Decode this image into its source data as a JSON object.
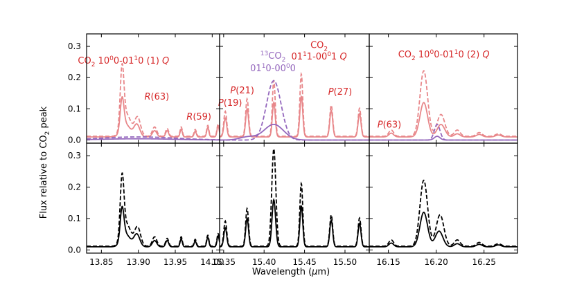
{
  "colors": {
    "co2": "#e8878a",
    "co2_text": "#d62728",
    "c13": "#9467bd",
    "total": "#000000"
  },
  "chart_data": {
    "type": "line",
    "ylabel": "Flux relative to CO₂ peak",
    "ylabel_parts": {
      "pre": "Flux relative to CO",
      "sub": "2",
      "post": " peak"
    },
    "xlabel": "Wavelength (μm)",
    "xlabel_parts": {
      "pre": "Wavelength (",
      "mu": "μ",
      "post": "m)"
    },
    "ylim": [
      -0.01,
      0.34
    ],
    "yticks": [
      0.0,
      0.1,
      0.2,
      0.3
    ],
    "ytick_labels": [
      "0.0",
      "0.1",
      "0.2",
      "0.3"
    ],
    "grid": false,
    "x_ranges": [
      {
        "xlim": [
          13.83,
          14.01
        ],
        "xticks": [
          13.85,
          13.9,
          13.95,
          14.0
        ],
        "xtick_labels": [
          "13.85",
          "13.90",
          "13.95",
          "14.00"
        ]
      },
      {
        "xlim": [
          15.345,
          15.53
        ],
        "xticks": [
          15.35,
          15.4,
          15.45,
          15.5
        ],
        "xtick_labels": [
          "15.35",
          "15.40",
          "15.45",
          "15.50"
        ]
      },
      {
        "xlim": [
          16.13,
          16.285
        ],
        "xticks": [
          16.15,
          16.2,
          16.25
        ],
        "xtick_labels": [
          "16.15",
          "16.20",
          "16.25"
        ]
      }
    ],
    "series": [
      {
        "row": "top",
        "color_key": "co2",
        "style": "solid",
        "baseline": 0.01,
        "peaks": [
          [
            [
              13.878,
              0.1,
              0.0025
            ],
            [
              13.883,
              0.04,
              0.006
            ],
            [
              13.898,
              0.04,
              0.004
            ],
            [
              13.922,
              0.02,
              0.003
            ],
            [
              13.939,
              0.02,
              0.002
            ],
            [
              13.958,
              0.025,
              0.0015
            ],
            [
              13.977,
              0.018,
              0.0015
            ],
            [
              13.994,
              0.03,
              0.0015
            ],
            [
              14.008,
              0.035,
              0.0015
            ]
          ],
          [
            [
              15.352,
              0.06,
              0.0018
            ],
            [
              15.379,
              0.09,
              0.0018
            ],
            [
              15.412,
              0.11,
              0.0018
            ],
            [
              15.446,
              0.13,
              0.0018
            ],
            [
              15.483,
              0.085,
              0.0018
            ],
            [
              15.518,
              0.075,
              0.0018
            ]
          ],
          [
            [
              16.153,
              0.012,
              0.0025
            ],
            [
              16.187,
              0.11,
              0.004
            ],
            [
              16.205,
              0.04,
              0.004
            ],
            [
              16.222,
              0.01,
              0.003
            ],
            [
              16.245,
              0.008,
              0.003
            ],
            [
              16.265,
              0.006,
              0.003
            ]
          ]
        ]
      },
      {
        "row": "top",
        "color_key": "co2",
        "style": "dashed",
        "baseline": 0.012,
        "peaks": [
          [
            [
              13.878,
              0.19,
              0.0025
            ],
            [
              13.884,
              0.07,
              0.006
            ],
            [
              13.899,
              0.06,
              0.004
            ],
            [
              13.922,
              0.03,
              0.003
            ],
            [
              13.939,
              0.025,
              0.002
            ],
            [
              13.958,
              0.03,
              0.0015
            ],
            [
              13.977,
              0.022,
              0.0015
            ],
            [
              13.994,
              0.035,
              0.0015
            ],
            [
              14.008,
              0.04,
              0.0015
            ]
          ],
          [
            [
              15.352,
              0.08,
              0.0018
            ],
            [
              15.379,
              0.12,
              0.0018
            ],
            [
              15.412,
              0.18,
              0.0018
            ],
            [
              15.446,
              0.2,
              0.0018
            ],
            [
              15.483,
              0.1,
              0.0018
            ],
            [
              15.518,
              0.09,
              0.0018
            ]
          ],
          [
            [
              16.153,
              0.02,
              0.0025
            ],
            [
              16.187,
              0.21,
              0.004
            ],
            [
              16.205,
              0.07,
              0.004
            ],
            [
              16.222,
              0.02,
              0.003
            ],
            [
              16.245,
              0.012,
              0.003
            ],
            [
              16.265,
              0.008,
              0.003
            ]
          ]
        ]
      },
      {
        "row": "top",
        "color_key": "c13",
        "style": "solid",
        "baseline": 0.0,
        "peaks": [
          [
            [
              13.9,
              0.004,
              0.05
            ]
          ],
          [
            [
              15.412,
              0.05,
              0.012
            ],
            [
              15.38,
              0.01,
              0.01
            ]
          ],
          [
            [
              16.201,
              0.012,
              0.003
            ]
          ]
        ]
      },
      {
        "row": "top",
        "color_key": "c13",
        "style": "dashed",
        "baseline": 0.0,
        "peaks": [
          [
            [
              13.9,
              0.01,
              0.05
            ]
          ],
          [
            [
              15.412,
              0.19,
              0.009
            ]
          ],
          [
            [
              16.201,
              0.05,
              0.003
            ]
          ]
        ]
      },
      {
        "row": "bottom",
        "color_key": "total",
        "style": "solid",
        "baseline": 0.01,
        "peaks": [
          [
            [
              13.878,
              0.1,
              0.0025
            ],
            [
              13.883,
              0.04,
              0.006
            ],
            [
              13.898,
              0.04,
              0.004
            ],
            [
              13.922,
              0.02,
              0.003
            ],
            [
              13.939,
              0.02,
              0.002
            ],
            [
              13.958,
              0.025,
              0.0015
            ],
            [
              13.977,
              0.018,
              0.0015
            ],
            [
              13.994,
              0.03,
              0.0015
            ],
            [
              14.008,
              0.035,
              0.0015
            ]
          ],
          [
            [
              15.352,
              0.06,
              0.0018
            ],
            [
              15.379,
              0.09,
              0.0018
            ],
            [
              15.412,
              0.15,
              0.0022
            ],
            [
              15.446,
              0.13,
              0.0018
            ],
            [
              15.483,
              0.085,
              0.0018
            ],
            [
              15.518,
              0.075,
              0.0018
            ]
          ],
          [
            [
              16.153,
              0.012,
              0.0025
            ],
            [
              16.187,
              0.11,
              0.004
            ],
            [
              16.203,
              0.05,
              0.004
            ],
            [
              16.222,
              0.01,
              0.003
            ],
            [
              16.245,
              0.008,
              0.003
            ],
            [
              16.265,
              0.006,
              0.003
            ]
          ]
        ]
      },
      {
        "row": "bottom",
        "color_key": "total",
        "style": "dashed",
        "baseline": 0.012,
        "peaks": [
          [
            [
              13.878,
              0.19,
              0.0025
            ],
            [
              13.884,
              0.07,
              0.006
            ],
            [
              13.899,
              0.06,
              0.004
            ],
            [
              13.922,
              0.03,
              0.003
            ],
            [
              13.939,
              0.025,
              0.002
            ],
            [
              13.958,
              0.03,
              0.0015
            ],
            [
              13.977,
              0.022,
              0.0015
            ],
            [
              13.994,
              0.035,
              0.0015
            ],
            [
              14.008,
              0.04,
              0.0015
            ]
          ],
          [
            [
              15.352,
              0.08,
              0.0018
            ],
            [
              15.379,
              0.12,
              0.0018
            ],
            [
              15.412,
              0.31,
              0.0025
            ],
            [
              15.446,
              0.2,
              0.0018
            ],
            [
              15.483,
              0.1,
              0.0018
            ],
            [
              15.518,
              0.09,
              0.0018
            ]
          ],
          [
            [
              16.153,
              0.02,
              0.0025
            ],
            [
              16.187,
              0.21,
              0.004
            ],
            [
              16.204,
              0.1,
              0.004
            ],
            [
              16.222,
              0.02,
              0.003
            ],
            [
              16.245,
              0.012,
              0.003
            ],
            [
              16.265,
              0.008,
              0.003
            ]
          ]
        ]
      }
    ],
    "annotations": [
      {
        "panel": 0,
        "color_key": "co2_text",
        "x": 13.88,
        "y": 0.245,
        "parts": [
          [
            "CO",
            ""
          ],
          [
            "2",
            "sub"
          ],
          [
            " 10",
            ""
          ],
          [
            "0",
            "sup"
          ],
          [
            "0-01",
            ""
          ],
          [
            "1",
            "sup"
          ],
          [
            "0 (1) ",
            ""
          ],
          [
            "Q",
            "it"
          ]
        ]
      },
      {
        "panel": 0,
        "color_key": "co2_text",
        "x": 13.925,
        "y": 0.13,
        "parts": [
          [
            "R",
            "it"
          ],
          [
            "(63)",
            ""
          ]
        ]
      },
      {
        "panel": 0,
        "color_key": "co2_text",
        "x": 13.982,
        "y": 0.065,
        "parts": [
          [
            "R",
            "it"
          ],
          [
            "(59)",
            ""
          ]
        ]
      },
      {
        "panel": 1,
        "color_key": "co2_text",
        "x": 15.358,
        "y": 0.11,
        "parts": [
          [
            "P",
            "it"
          ],
          [
            "(19)",
            ""
          ]
        ]
      },
      {
        "panel": 1,
        "color_key": "co2_text",
        "x": 15.373,
        "y": 0.15,
        "parts": [
          [
            "P",
            "it"
          ],
          [
            "(21)",
            ""
          ]
        ]
      },
      {
        "panel": 1,
        "color_key": "co2_text",
        "x": 15.494,
        "y": 0.145,
        "parts": [
          [
            "P",
            "it"
          ],
          [
            "(27)",
            ""
          ]
        ]
      },
      {
        "panel": 1,
        "color_key": "co2_text",
        "x": 15.468,
        "y": 0.295,
        "parts": [
          [
            "CO",
            ""
          ],
          [
            "2",
            "sub"
          ]
        ]
      },
      {
        "panel": 1,
        "color_key": "co2_text",
        "x": 15.468,
        "y": 0.258,
        "parts": [
          [
            "01",
            ""
          ],
          [
            "1",
            "sup"
          ],
          [
            "1-00",
            ""
          ],
          [
            "0",
            "sup"
          ],
          [
            "1 ",
            ""
          ],
          [
            "Q",
            "it"
          ]
        ]
      },
      {
        "panel": 1,
        "color_key": "c13",
        "x": 15.411,
        "y": 0.26,
        "parts": [
          [
            "13",
            "sup"
          ],
          [
            "CO",
            ""
          ],
          [
            "2",
            "sub"
          ]
        ]
      },
      {
        "panel": 1,
        "color_key": "c13",
        "x": 15.411,
        "y": 0.22,
        "parts": [
          [
            "01",
            ""
          ],
          [
            "1",
            "sup"
          ],
          [
            "0-00",
            ""
          ],
          [
            "0",
            "sup"
          ],
          [
            "0",
            ""
          ]
        ]
      },
      {
        "panel": 2,
        "color_key": "co2_text",
        "x": 16.208,
        "y": 0.265,
        "parts": [
          [
            "CO",
            ""
          ],
          [
            "2",
            "sub"
          ],
          [
            " 10",
            ""
          ],
          [
            "0",
            "sup"
          ],
          [
            "0-01",
            ""
          ],
          [
            "1",
            "sup"
          ],
          [
            "0 (2) ",
            ""
          ],
          [
            "Q",
            "it"
          ]
        ]
      },
      {
        "panel": 2,
        "color_key": "co2_text",
        "x": 16.151,
        "y": 0.04,
        "parts": [
          [
            "P",
            "it"
          ],
          [
            "(63)",
            ""
          ]
        ]
      }
    ]
  }
}
